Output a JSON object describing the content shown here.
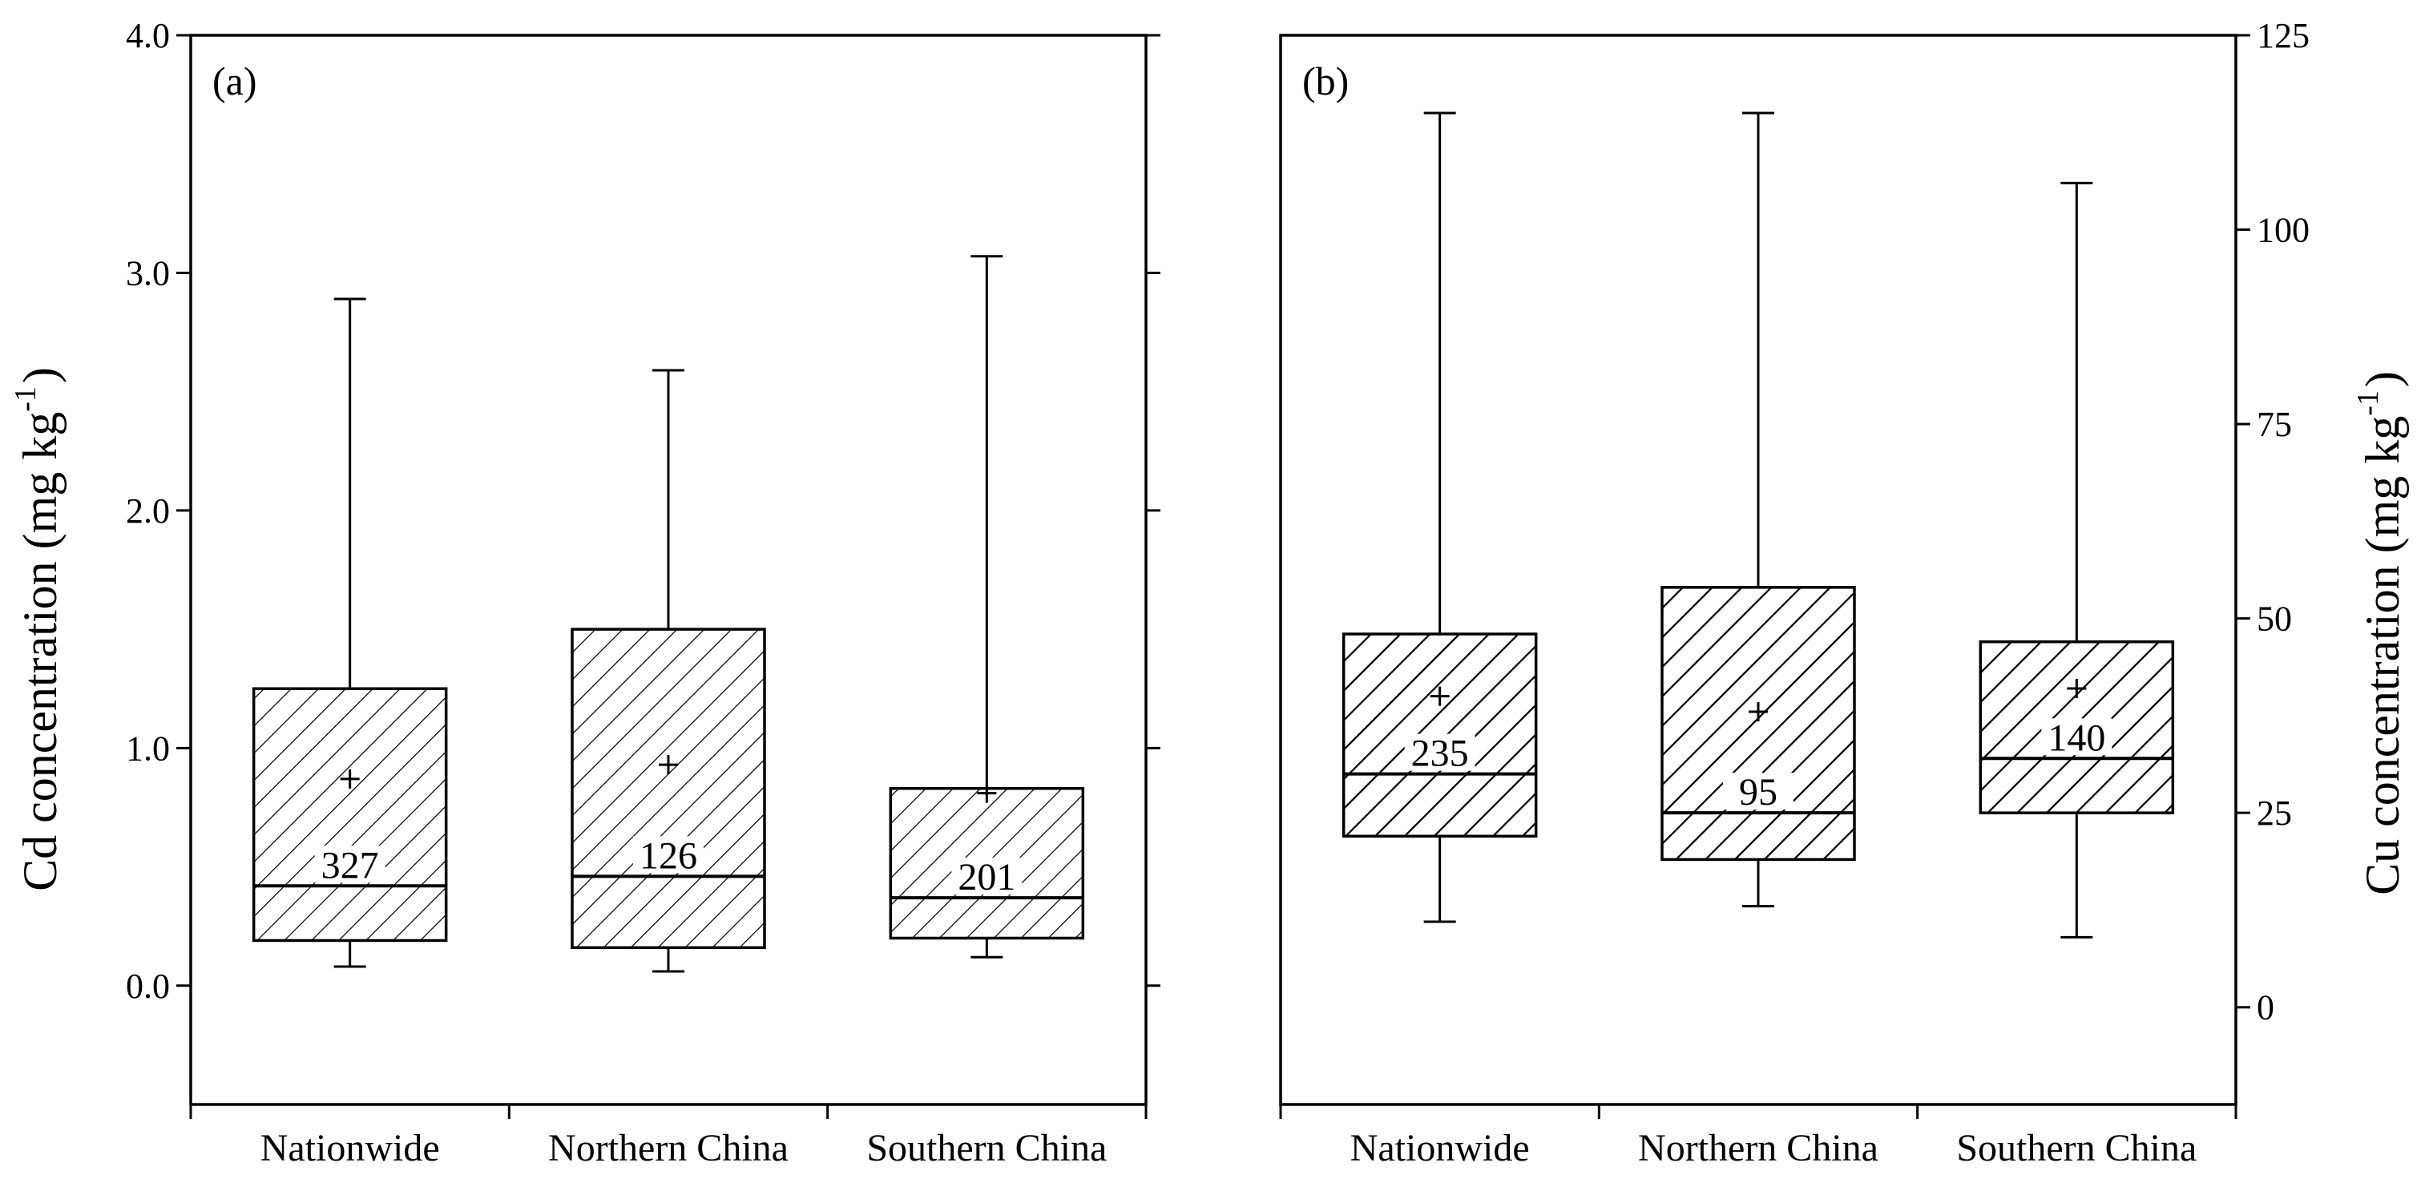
{
  "chart_data": [
    {
      "type": "box",
      "panel_label": "(a)",
      "ylabel": "Cd concentration (mg kg",
      "ylabel_superscript": "-1",
      "ylabel_close": ")",
      "ylabel_side": "left",
      "ylim": [
        -0.5,
        4.0
      ],
      "yticks": [
        0.0,
        1.0,
        2.0,
        3.0,
        4.0
      ],
      "ytick_labels": [
        "0.0",
        "1.0",
        "2.0",
        "3.0",
        "4.0"
      ],
      "categories": [
        "Nationwide",
        "Northern China",
        "Southern China"
      ],
      "boxes": [
        {
          "category": "Nationwide",
          "whisker_low": 0.08,
          "q1": 0.19,
          "median": 0.42,
          "q3": 1.25,
          "whisker_high": 2.89,
          "mean": 0.87,
          "n": "327"
        },
        {
          "category": "Northern China",
          "whisker_low": 0.06,
          "q1": 0.16,
          "median": 0.46,
          "q3": 1.5,
          "whisker_high": 2.59,
          "mean": 0.93,
          "n": "126"
        },
        {
          "category": "Southern China",
          "whisker_low": 0.12,
          "q1": 0.2,
          "median": 0.37,
          "q3": 0.83,
          "whisker_high": 3.07,
          "mean": 0.81,
          "n": "201"
        }
      ]
    },
    {
      "type": "box",
      "panel_label": "(b)",
      "ylabel": "Cu concentration (mg kg",
      "ylabel_superscript": "-1",
      "ylabel_close": ")",
      "ylabel_side": "right",
      "ylim": [
        -12.5,
        125
      ],
      "yticks": [
        0,
        25,
        50,
        75,
        100,
        125
      ],
      "ytick_labels": [
        "0",
        "25",
        "50",
        "75",
        "100",
        "125"
      ],
      "categories": [
        "Nationwide",
        "Northern China",
        "Southern China"
      ],
      "boxes": [
        {
          "category": "Nationwide",
          "whisker_low": 11,
          "q1": 22,
          "median": 30,
          "q3": 48,
          "whisker_high": 115,
          "mean": 40,
          "n": "235"
        },
        {
          "category": "Northern China",
          "whisker_low": 13,
          "q1": 19,
          "median": 25,
          "q3": 54,
          "whisker_high": 115,
          "mean": 38,
          "n": "95"
        },
        {
          "category": "Southern China",
          "whisker_low": 9,
          "q1": 25,
          "median": 32,
          "q3": 47,
          "whisker_high": 106,
          "mean": 41,
          "n": "140"
        }
      ]
    }
  ]
}
